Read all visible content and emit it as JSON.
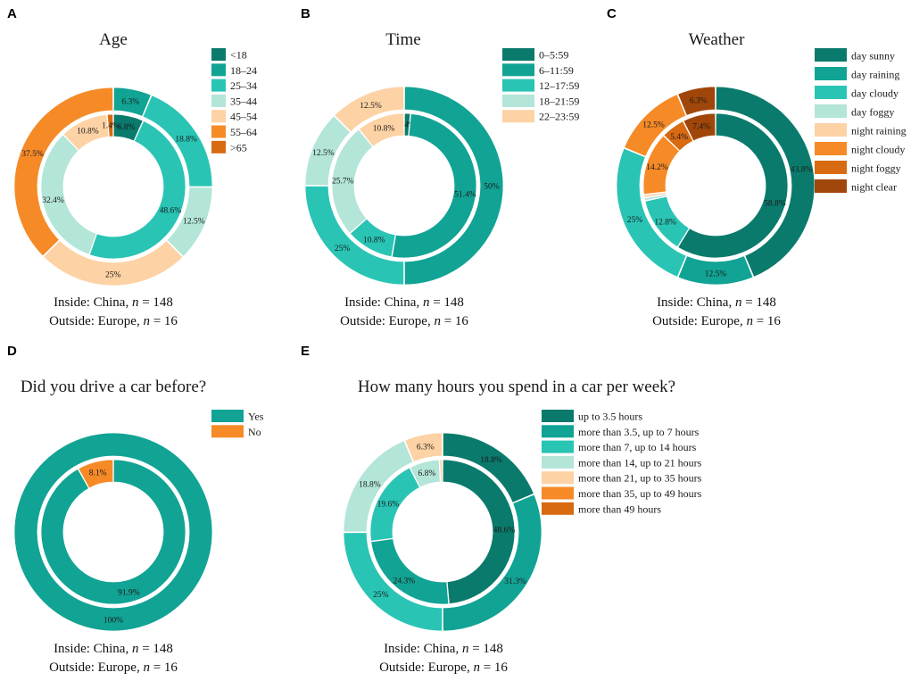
{
  "chart_data": [
    {
      "id": "A",
      "panel_label": "A",
      "type": "nested-donut",
      "title": "Age",
      "categories": [
        "<18",
        "18–24",
        "25–34",
        "35–44",
        "45–54",
        "55–64",
        ">65"
      ],
      "colors": [
        "#0a7a6c",
        "#11a394",
        "#29c4b4",
        "#b3e5d8",
        "#fdd2a4",
        "#f58a27",
        "#d86a12"
      ],
      "inner": {
        "name": "China",
        "n": 148,
        "values": [
          6.8,
          0,
          48.6,
          32.4,
          10.8,
          0,
          1.4
        ],
        "labels": [
          "6.8%",
          "",
          "48.6%",
          "32.4%",
          "10.8%",
          "",
          "1.4%"
        ]
      },
      "outer": {
        "name": "Europe",
        "n": 16,
        "values": [
          0,
          6.3,
          18.8,
          12.5,
          25,
          37.5,
          0
        ],
        "labels": [
          "",
          "6.3%",
          "18.8%",
          "12.5%",
          "25%",
          "37.5%",
          ""
        ]
      },
      "caption_inside": {
        "prefix": "Inside: China, ",
        "var": "n",
        "suffix": " = 148"
      },
      "caption_outside": {
        "prefix": "Outside: Europe, ",
        "var": "n",
        "suffix": " = 16"
      }
    },
    {
      "id": "B",
      "panel_label": "B",
      "type": "nested-donut",
      "title": "Time",
      "categories": [
        "0–5:59",
        "6–11:59",
        "12–17:59",
        "18–21:59",
        "22–23:59"
      ],
      "colors": [
        "#0a7a6c",
        "#11a394",
        "#29c4b4",
        "#b3e5d8",
        "#fdd2a4"
      ],
      "inner": {
        "name": "China",
        "n": 148,
        "values": [
          1.4,
          51.4,
          10.8,
          25.7,
          10.8
        ],
        "labels": [
          "1.4%",
          "51.4%",
          "10.8%",
          "25.7%",
          "10.8%"
        ]
      },
      "outer": {
        "name": "Europe",
        "n": 16,
        "values": [
          0,
          50,
          25,
          12.5,
          12.5
        ],
        "labels": [
          "",
          "50%",
          "25%",
          "12.5%",
          "12.5%"
        ]
      },
      "caption_inside": {
        "prefix": "Inside: China, ",
        "var": "n",
        "suffix": " = 148"
      },
      "caption_outside": {
        "prefix": "Outside: Europe, ",
        "var": "n",
        "suffix": " = 16"
      }
    },
    {
      "id": "C",
      "panel_label": "C",
      "type": "nested-donut",
      "title": "Weather",
      "categories": [
        "day sunny",
        "day raining",
        "day cloudy",
        "day foggy",
        "night raining",
        "night cloudy",
        "night foggy",
        "night clear"
      ],
      "colors": [
        "#0a7a6c",
        "#11a394",
        "#29c4b4",
        "#b3e5d8",
        "#fdd2a4",
        "#f58a27",
        "#d86a12",
        "#a0460a"
      ],
      "inner": {
        "name": "China",
        "n": 148,
        "values": [
          58.8,
          0,
          12.8,
          0.7,
          0.7,
          14.2,
          5.4,
          7.4
        ],
        "labels": [
          "58.8%",
          "",
          "12.8%",
          "",
          "",
          "14.2%",
          "5.4%",
          "7.4%"
        ]
      },
      "outer": {
        "name": "Europe",
        "n": 16,
        "values": [
          43.8,
          12.5,
          25,
          0,
          0,
          12.5,
          0,
          6.3
        ],
        "labels": [
          "43.8%",
          "12.5%",
          "25%",
          "",
          "",
          "12.5%",
          "",
          "6.3%"
        ]
      },
      "caption_inside": {
        "prefix": "Inside: China, ",
        "var": "n",
        "suffix": " = 148"
      },
      "caption_outside": {
        "prefix": "Outside: Europe, ",
        "var": "n",
        "suffix": " = 16"
      }
    },
    {
      "id": "D",
      "panel_label": "D",
      "type": "nested-donut",
      "title": "Did you drive a car before?",
      "categories": [
        "Yes",
        "No"
      ],
      "colors": [
        "#11a394",
        "#f58a27"
      ],
      "inner": {
        "name": "China",
        "n": 148,
        "values": [
          91.9,
          8.1
        ],
        "labels": [
          "91.9%",
          "8.1%"
        ]
      },
      "outer": {
        "name": "Europe",
        "n": 16,
        "values": [
          100,
          0
        ],
        "labels": [
          "100%",
          ""
        ]
      },
      "caption_inside": {
        "prefix": "Inside: China, ",
        "var": "n",
        "suffix": " = 148"
      },
      "caption_outside": {
        "prefix": "Outside: Europe, ",
        "var": "n",
        "suffix": " = 16"
      }
    },
    {
      "id": "E",
      "panel_label": "E",
      "type": "nested-donut",
      "title": "How many hours you spend in a car per week?",
      "categories": [
        "up to 3.5 hours",
        "more than 3.5, up to 7 hours",
        "more than 7, up to 14 hours",
        "more than 14, up to 21 hours",
        "more than 21, up to 35 hours",
        "more than 35, up to 49 hours",
        "more than 49 hours"
      ],
      "colors": [
        "#0a7a6c",
        "#11a394",
        "#29c4b4",
        "#b3e5d8",
        "#fdd2a4",
        "#f58a27",
        "#d86a12"
      ],
      "inner": {
        "name": "China",
        "n": 148,
        "values": [
          48.6,
          24.3,
          19.6,
          6.8,
          0.7,
          0,
          0
        ],
        "labels": [
          "48.6%",
          "24.3%",
          "19.6%",
          "6.8%",
          "",
          "",
          ""
        ]
      },
      "outer": {
        "name": "Europe",
        "n": 16,
        "values": [
          18.8,
          31.3,
          25,
          18.8,
          6.3,
          0,
          0
        ],
        "labels": [
          "18.8%",
          "31.3%",
          "25%",
          "18.8%",
          "6.3%",
          "",
          ""
        ]
      },
      "caption_inside": {
        "prefix": "Inside: China, ",
        "var": "n",
        "suffix": " = 148"
      },
      "caption_outside": {
        "prefix": "Outside: Europe, ",
        "var": "n",
        "suffix": " = 16"
      }
    }
  ]
}
